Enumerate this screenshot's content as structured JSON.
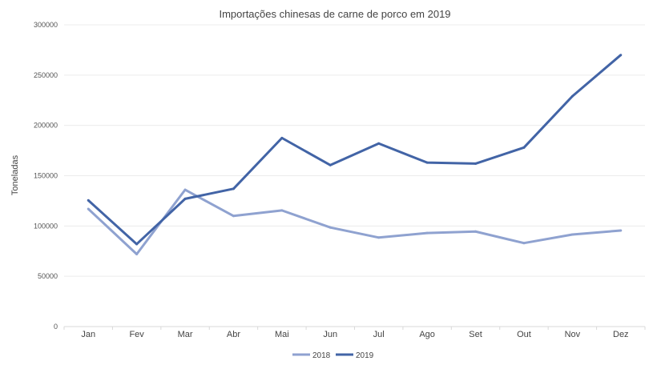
{
  "chart_data": {
    "type": "line",
    "title": "Importações chinesas de carne de porco em 2019",
    "xlabel": "",
    "ylabel": "Toneladas",
    "ylim": [
      0,
      300000
    ],
    "yticks": [
      "0",
      "50000",
      "100000",
      "150000",
      "200000",
      "250000",
      "300000"
    ],
    "categories": [
      "Jan",
      "Fev",
      "Mar",
      "Abr",
      "Mai",
      "Jun",
      "Jul",
      "Ago",
      "Set",
      "Out",
      "Nov",
      "Dez"
    ],
    "grid": true,
    "legend": "bottom",
    "series": [
      {
        "name": "2018",
        "color": "#8fa2d0",
        "values": [
          117000,
          72000,
          136000,
          110000,
          115500,
          98500,
          88500,
          93000,
          94500,
          83000,
          91500,
          95500
        ]
      },
      {
        "name": "2019",
        "color": "#4264a6",
        "values": [
          125500,
          82000,
          127000,
          137000,
          187500,
          160500,
          182000,
          163000,
          162000,
          178000,
          229000,
          270000
        ]
      }
    ]
  }
}
